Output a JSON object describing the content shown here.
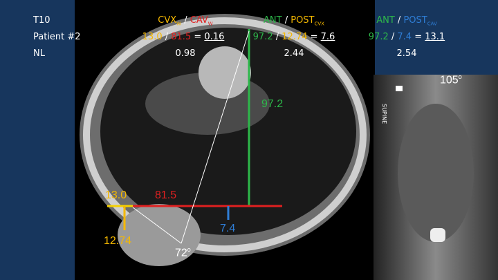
{
  "labels": {
    "level": "T10",
    "patient": "Patient #2",
    "reference": "NL"
  },
  "columns": [
    {
      "header": [
        "CVX",
        "W",
        " / ",
        "CAV",
        "W"
      ],
      "ratio": [
        "13.0",
        " / ",
        "81.5",
        " = ",
        "0.16"
      ],
      "normal": "0.98"
    },
    {
      "header": [
        "ANT",
        " / ",
        "POST",
        "CVX"
      ],
      "ratio": [
        "97.2",
        " / ",
        "12.74",
        " = ",
        "7.6"
      ],
      "normal": "2.44"
    },
    {
      "header": [
        "ANT",
        " / ",
        "POST",
        "CAV"
      ],
      "ratio": [
        "97.2",
        " / ",
        "7.4",
        " = ",
        "13.1"
      ],
      "normal": "2.54"
    }
  ],
  "ct_annotations": {
    "ant": "97.2",
    "cvx_width": "13.0",
    "cav_width": "81.5",
    "post_cav": "7.4",
    "post_cvx": "12.74",
    "angle": "72",
    "angle_unit": "o"
  },
  "xray_annotations": {
    "angle": "105",
    "angle_unit": "o",
    "marker": "SUPINE"
  }
}
